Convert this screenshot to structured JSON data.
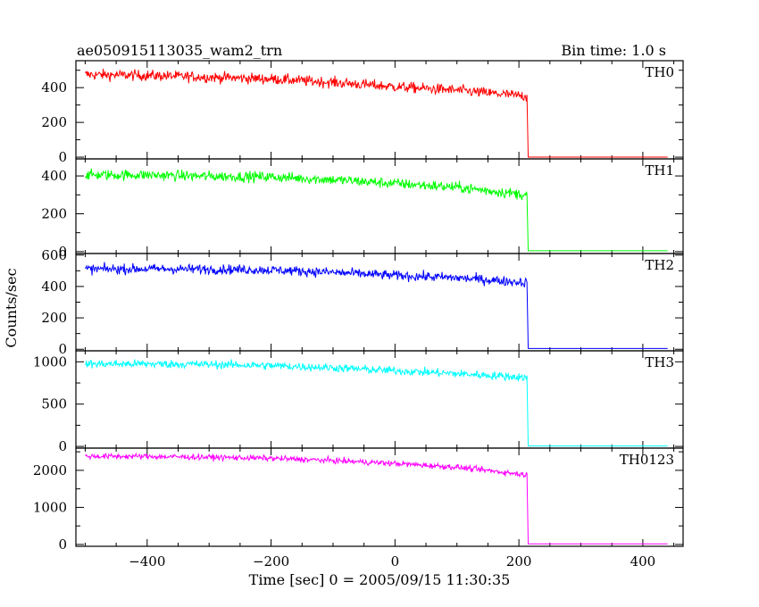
{
  "header": {
    "title": "ae050915113035_wam2_trn",
    "bin_time": "Bin time: 1.0 s"
  },
  "axes": {
    "ylabel": "Counts/sec",
    "xlabel": "Time [sec] 0 = 2005/09/15 11:30:35",
    "xlim": [
      -515,
      465
    ],
    "x_ticks": [
      -400,
      -200,
      0,
      200,
      400
    ],
    "x_tick_labels": [
      "−400",
      "−200",
      "0",
      "200",
      "400"
    ]
  },
  "chart_data": [
    {
      "type": "line",
      "name": "TH0",
      "color": "#ff0000",
      "ylim": [
        -10,
        555
      ],
      "yticks": [
        0,
        200,
        400
      ],
      "x": [
        -500,
        -400,
        -300,
        -200,
        -100,
        0,
        100,
        213,
        215,
        440
      ],
      "y": [
        475,
        470,
        460,
        450,
        430,
        405,
        385,
        350,
        0,
        0
      ],
      "noise": 22
    },
    {
      "type": "line",
      "name": "TH1",
      "color": "#00ff00",
      "ylim": [
        -10,
        490
      ],
      "yticks": [
        0,
        200,
        400
      ],
      "x": [
        -500,
        -400,
        -300,
        -200,
        -100,
        0,
        100,
        213,
        215,
        440
      ],
      "y": [
        405,
        405,
        398,
        395,
        380,
        360,
        340,
        300,
        5,
        5
      ],
      "noise": 20
    },
    {
      "type": "line",
      "name": "TH2",
      "color": "#0000ff",
      "ylim": [
        -10,
        610
      ],
      "yticks": [
        0,
        200,
        400,
        600
      ],
      "x": [
        -500,
        -400,
        -300,
        -200,
        -100,
        0,
        100,
        213,
        215,
        440
      ],
      "y": [
        510,
        512,
        510,
        505,
        490,
        470,
        455,
        425,
        5,
        5
      ],
      "noise": 22
    },
    {
      "type": "line",
      "name": "TH3",
      "color": "#00ffff",
      "ylim": [
        -20,
        1130
      ],
      "yticks": [
        0,
        500,
        1000
      ],
      "x": [
        -500,
        -400,
        -300,
        -200,
        -100,
        0,
        100,
        213,
        215,
        440
      ],
      "y": [
        975,
        975,
        970,
        955,
        930,
        895,
        860,
        815,
        5,
        5
      ],
      "noise": 35
    },
    {
      "type": "line",
      "name": "TH0123",
      "color": "#ff00ff",
      "ylim": [
        -50,
        2600
      ],
      "yticks": [
        0,
        1000,
        2000
      ],
      "x": [
        -500,
        -400,
        -300,
        -200,
        -100,
        0,
        100,
        213,
        215,
        440
      ],
      "y": [
        2380,
        2375,
        2355,
        2325,
        2265,
        2185,
        2085,
        1880,
        15,
        15
      ],
      "noise": 55
    }
  ]
}
